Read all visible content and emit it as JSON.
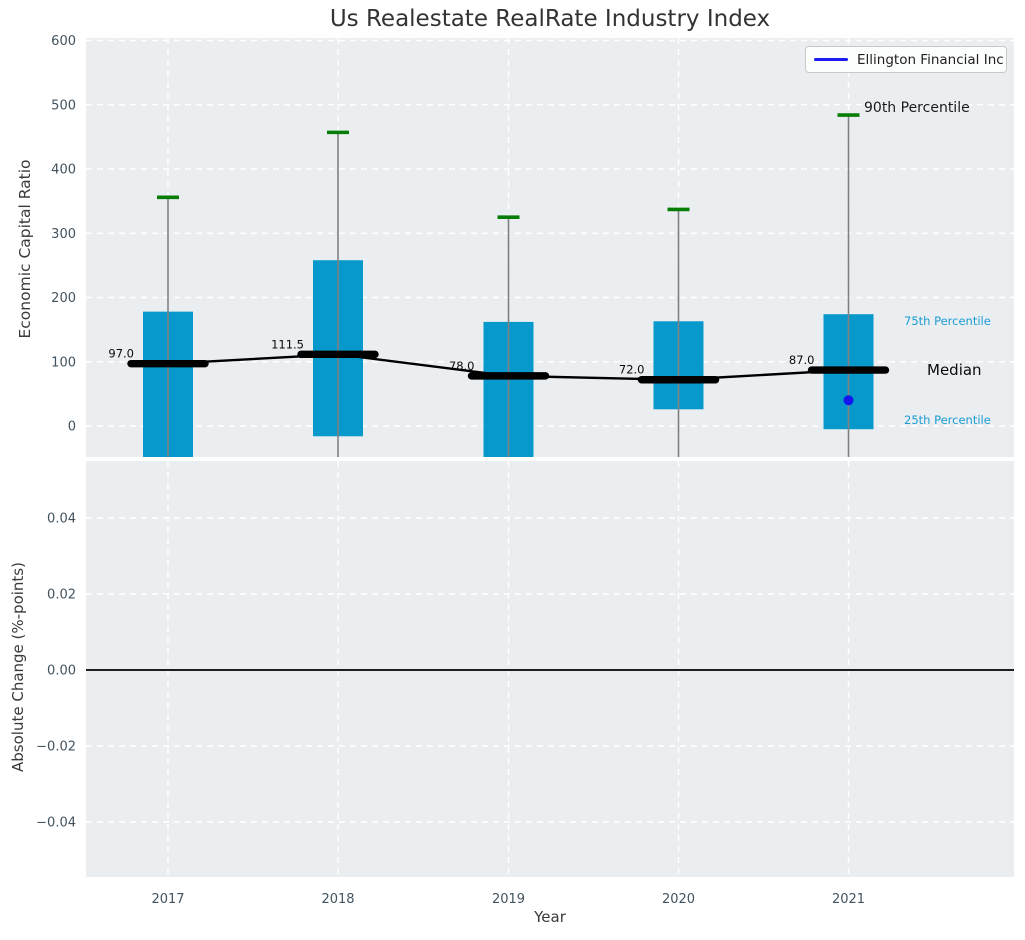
{
  "page": {
    "title": "Us Realestate RealRate Industry Index",
    "xlabel": "Year"
  },
  "legend": {
    "label": "Ellington Financial Inc"
  },
  "annotations": {
    "p90": "90th Percentile",
    "p75": "75th Percentile",
    "median": "Median",
    "p25": "25th Percentile"
  },
  "colors": {
    "panel_bg": "#EAEEF1",
    "grid": "#FFFFFF",
    "box": "#0899CC",
    "whisker_stem": "#808080",
    "whisker_cap": "#067D06",
    "median": "#000000",
    "company": "#1515EF",
    "tick_text": "#42535F",
    "annotation_blue": "#1B9CD3",
    "zero_line": "#000000"
  },
  "chart_data": [
    {
      "type": "box",
      "panel": "top",
      "title": "Us Realestate RealRate Industry Index",
      "ylabel": "Economic Capital Ratio",
      "categories": [
        2017,
        2018,
        2019,
        2020,
        2021
      ],
      "yticks": [
        600,
        500,
        400,
        300,
        200,
        100,
        0
      ],
      "ylim": [
        -50,
        604
      ],
      "grid": true,
      "legend_position": "upper right",
      "series": {
        "median": [
          97.0,
          111.5,
          78.0,
          72.0,
          87.0
        ],
        "median_labels": [
          "97.0",
          "111.5",
          "78.0",
          "72.0",
          "87.0"
        ],
        "percentile_75": [
          178,
          258,
          162,
          163,
          174
        ],
        "percentile_25": [
          null,
          -16,
          null,
          26,
          -5
        ],
        "percentile_90": [
          356,
          457,
          325,
          337,
          484
        ]
      },
      "notes": "null 25th percentile = box extends below visible axis (clipped); whisker stems run from 90th percentile cap down past the boxes to the clipped axis bottom",
      "company_point": {
        "name": "Ellington Financial Inc",
        "x": 2021,
        "y": 40
      }
    },
    {
      "type": "line",
      "panel": "bottom",
      "ylabel": "Absolute Change (%-points)",
      "xlabel": "Year",
      "categories": [
        2017,
        2018,
        2019,
        2020,
        2021
      ],
      "yticks": [
        0.04,
        0.02,
        0.0,
        -0.02,
        -0.04
      ],
      "ylim": [
        -0.055,
        0.055
      ],
      "zero_line": 0.0,
      "grid": true,
      "series": []
    }
  ]
}
